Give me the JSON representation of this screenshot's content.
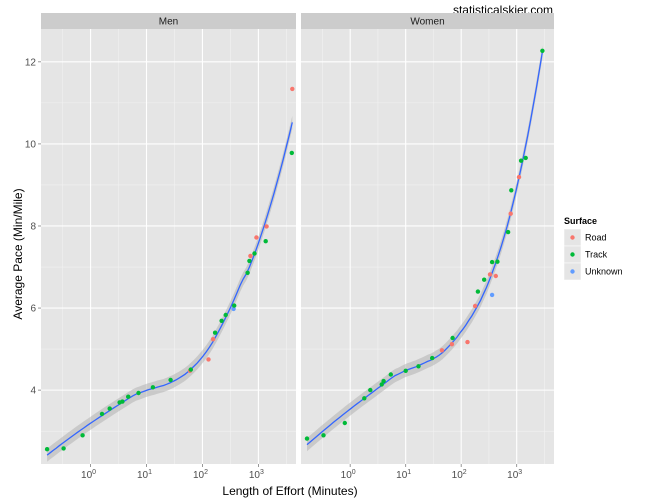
{
  "watermark": "statisticalskier.com",
  "chart_data": {
    "type": "scatter",
    "xlabel": "Length of Effort (Minutes)",
    "ylabel": "Average Pace (Min/Mile)",
    "x_scale": "log10",
    "xlim": [
      0.13,
      4700
    ],
    "ylim": [
      2.2,
      12.8
    ],
    "x_ticks": [
      {
        "value": 1,
        "base": "10",
        "exp": "0"
      },
      {
        "value": 10,
        "base": "10",
        "exp": "1"
      },
      {
        "value": 100,
        "base": "10",
        "exp": "2"
      },
      {
        "value": 1000,
        "base": "10",
        "exp": "3"
      }
    ],
    "y_ticks": [
      4,
      6,
      8,
      10,
      12
    ],
    "legend": {
      "title": "Surface",
      "position": "right",
      "entries": [
        {
          "label": "Road",
          "color": "#F8766D"
        },
        {
          "label": "Track",
          "color": "#00BA38"
        },
        {
          "label": "Unknown",
          "color": "#619CFF"
        }
      ]
    },
    "colors": {
      "panel_bg": "#E5E5E5",
      "strip_bg": "#CCCCCC",
      "grid_major": "#FFFFFF",
      "grid_minor": "#F2F2F2",
      "smooth_line": "#3366FF",
      "ribbon": "#B3B3B3"
    },
    "panels": [
      {
        "label": "Men",
        "points": [
          {
            "x": 0.167,
            "y": 2.56,
            "surface": "Track"
          },
          {
            "x": 0.33,
            "y": 2.58,
            "surface": "Track"
          },
          {
            "x": 0.72,
            "y": 2.9,
            "surface": "Track"
          },
          {
            "x": 1.6,
            "y": 3.42,
            "surface": "Track"
          },
          {
            "x": 2.2,
            "y": 3.55,
            "surface": "Track"
          },
          {
            "x": 3.3,
            "y": 3.7,
            "surface": "Track"
          },
          {
            "x": 3.7,
            "y": 3.72,
            "surface": "Track"
          },
          {
            "x": 4.7,
            "y": 3.84,
            "surface": "Track"
          },
          {
            "x": 7.2,
            "y": 3.93,
            "surface": "Track"
          },
          {
            "x": 13,
            "y": 4.07,
            "surface": "Track"
          },
          {
            "x": 27,
            "y": 4.25,
            "surface": "Track"
          },
          {
            "x": 60,
            "y": 4.47,
            "surface": "Road"
          },
          {
            "x": 62,
            "y": 4.5,
            "surface": "Track"
          },
          {
            "x": 128,
            "y": 4.75,
            "surface": "Road"
          },
          {
            "x": 155,
            "y": 5.24,
            "surface": "Road"
          },
          {
            "x": 168,
            "y": 5.4,
            "surface": "Track"
          },
          {
            "x": 220,
            "y": 5.69,
            "surface": "Track"
          },
          {
            "x": 260,
            "y": 5.83,
            "surface": "Track"
          },
          {
            "x": 360,
            "y": 5.98,
            "surface": "Unknown"
          },
          {
            "x": 370,
            "y": 6.06,
            "surface": "Track"
          },
          {
            "x": 640,
            "y": 6.86,
            "surface": "Track"
          },
          {
            "x": 690,
            "y": 7.15,
            "surface": "Track"
          },
          {
            "x": 720,
            "y": 7.27,
            "surface": "Road"
          },
          {
            "x": 850,
            "y": 7.33,
            "surface": "Track"
          },
          {
            "x": 920,
            "y": 7.72,
            "surface": "Road"
          },
          {
            "x": 1350,
            "y": 7.63,
            "surface": "Track"
          },
          {
            "x": 1400,
            "y": 7.99,
            "surface": "Road"
          },
          {
            "x": 3950,
            "y": 9.78,
            "surface": "Track"
          },
          {
            "x": 4030,
            "y": 11.34,
            "surface": "Road"
          }
        ]
      },
      {
        "label": "Women",
        "points": [
          {
            "x": 0.167,
            "y": 2.82,
            "surface": "Track"
          },
          {
            "x": 0.33,
            "y": 2.9,
            "surface": "Track"
          },
          {
            "x": 0.8,
            "y": 3.2,
            "surface": "Track"
          },
          {
            "x": 1.8,
            "y": 3.8,
            "surface": "Track"
          },
          {
            "x": 2.3,
            "y": 4.0,
            "surface": "Track"
          },
          {
            "x": 3.7,
            "y": 4.14,
            "surface": "Track"
          },
          {
            "x": 4.0,
            "y": 4.22,
            "surface": "Track"
          },
          {
            "x": 5.4,
            "y": 4.38,
            "surface": "Track"
          },
          {
            "x": 10,
            "y": 4.47,
            "surface": "Track"
          },
          {
            "x": 17,
            "y": 4.58,
            "surface": "Track"
          },
          {
            "x": 30,
            "y": 4.78,
            "surface": "Track"
          },
          {
            "x": 45,
            "y": 4.97,
            "surface": "Road"
          },
          {
            "x": 68,
            "y": 5.12,
            "surface": "Road"
          },
          {
            "x": 70,
            "y": 5.27,
            "surface": "Track"
          },
          {
            "x": 130,
            "y": 5.17,
            "surface": "Road"
          },
          {
            "x": 178,
            "y": 6.05,
            "surface": "Road"
          },
          {
            "x": 200,
            "y": 6.4,
            "surface": "Track"
          },
          {
            "x": 260,
            "y": 6.69,
            "surface": "Track"
          },
          {
            "x": 330,
            "y": 6.82,
            "surface": "Road"
          },
          {
            "x": 360,
            "y": 6.32,
            "surface": "Unknown"
          },
          {
            "x": 360,
            "y": 7.12,
            "surface": "Track"
          },
          {
            "x": 420,
            "y": 6.78,
            "surface": "Road"
          },
          {
            "x": 450,
            "y": 7.13,
            "surface": "Track"
          },
          {
            "x": 700,
            "y": 7.85,
            "surface": "Track"
          },
          {
            "x": 780,
            "y": 8.3,
            "surface": "Road"
          },
          {
            "x": 800,
            "y": 8.87,
            "surface": "Track"
          },
          {
            "x": 1100,
            "y": 9.19,
            "surface": "Road"
          },
          {
            "x": 1200,
            "y": 9.59,
            "surface": "Track"
          },
          {
            "x": 1450,
            "y": 9.66,
            "surface": "Track"
          },
          {
            "x": 2900,
            "y": 12.27,
            "surface": "Track"
          }
        ]
      }
    ]
  }
}
